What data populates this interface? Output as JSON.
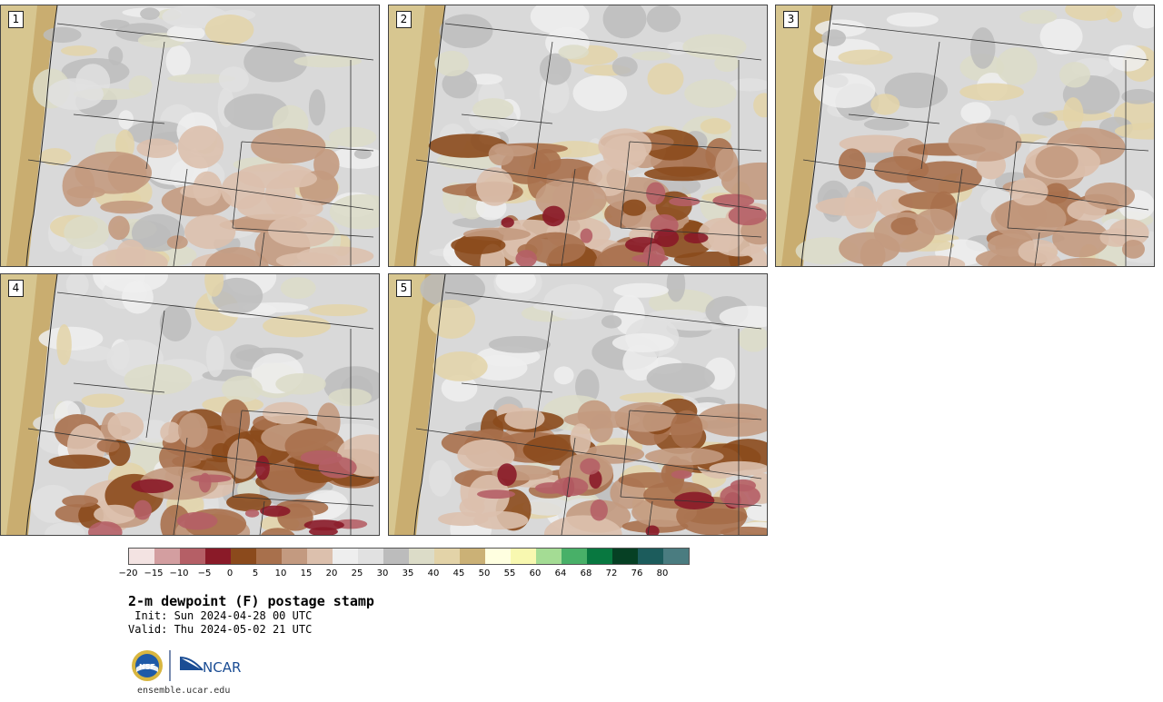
{
  "panels": [
    {
      "id": "1",
      "label": "1",
      "moist_level": 1
    },
    {
      "id": "2",
      "label": "2",
      "moist_level": 3
    },
    {
      "id": "3",
      "label": "3",
      "moist_level": 2
    },
    {
      "id": "4",
      "label": "4",
      "moist_level": 3
    },
    {
      "id": "5",
      "label": "5",
      "moist_level": 3
    }
  ],
  "colorbar": {
    "colors": [
      "#f3e3e2",
      "#d39ea0",
      "#b55f66",
      "#8a1a28",
      "#8b4a1c",
      "#a8704c",
      "#c39a80",
      "#dcc0ad",
      "#eeeeee",
      "#e1e1e1",
      "#bcbcbc",
      "#dcdcc8",
      "#e3d3a8",
      "#cbb176",
      "#ffffe0",
      "#f8f8b0",
      "#a4dc94",
      "#48b068",
      "#087840",
      "#064024",
      "#1c5c5c",
      "#4a7c80"
    ],
    "tick_labels": [
      "−20",
      "−15",
      "−10",
      "−5",
      "0",
      "5",
      "10",
      "15",
      "20",
      "25",
      "30",
      "35",
      "40",
      "45",
      "50",
      "55",
      "60",
      "64",
      "68",
      "72",
      "76",
      "80"
    ]
  },
  "title": "2-m dewpoint (F) postage stamp",
  "init": " Init: Sun 2024-04-28 00 UTC",
  "valid": "Valid: Thu 2024-05-02 21 UTC",
  "logos": {
    "nsf": "NSF",
    "ncar": "NCAR"
  },
  "site": "ensemble.ucar.edu"
}
